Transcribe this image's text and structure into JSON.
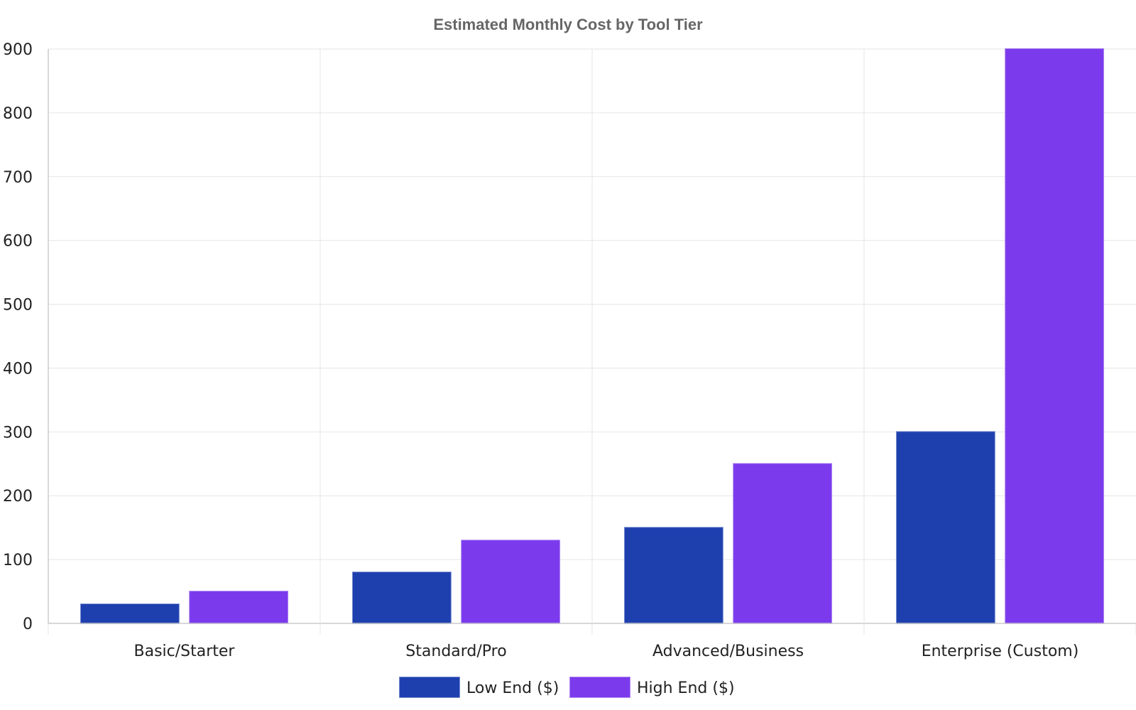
{
  "chart_data": {
    "type": "bar",
    "title": "Estimated Monthly Cost by Tool Tier",
    "xlabel": "",
    "ylabel": "",
    "categories": [
      "Basic/Starter",
      "Standard/Pro",
      "Advanced/Business",
      "Enterprise (Custom)"
    ],
    "series": [
      {
        "name": "Low End ($)",
        "values": [
          30,
          80,
          150,
          300
        ],
        "color": "#1e40af"
      },
      {
        "name": "High End ($)",
        "values": [
          50,
          130,
          250,
          900
        ],
        "color": "#7c3aed"
      }
    ],
    "ylim": [
      0,
      900
    ],
    "yticks": [
      0,
      100,
      200,
      300,
      400,
      500,
      600,
      700,
      800,
      900
    ],
    "grid": true,
    "legend_position": "bottom-center"
  }
}
